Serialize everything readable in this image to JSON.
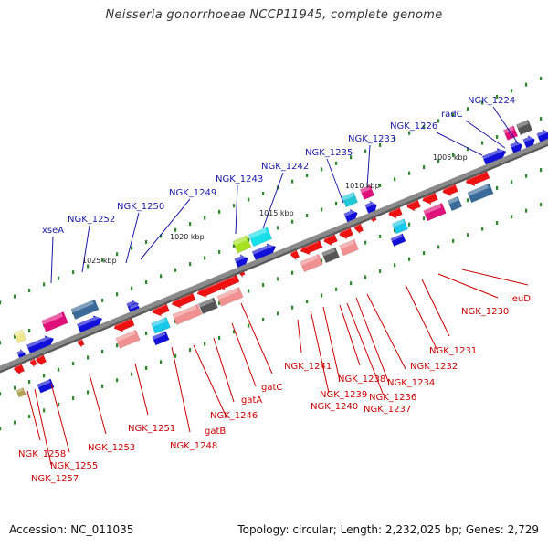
{
  "title": "Neisseria gonorrhoeae NCCP11945, complete genome",
  "footer": {
    "accession": "Accession: NC_011035",
    "summary": "Topology: circular; Length: 2,232,025 bp; Genes: 2,729"
  },
  "colors": {
    "backbone": "#8a8a8a",
    "upper_label": "#1a1aa8",
    "lower_label": "#cc0000"
  },
  "ticks": [
    "1005 kbp",
    "1010 kbp",
    "1015 kbp",
    "1020 kbp",
    "1025 kbp"
  ],
  "upper_labels": [
    "NGK_1224",
    "radC",
    "NGK_1226",
    "NGK_1233",
    "NGK_1235",
    "NGK_1242",
    "NGK_1243",
    "NGK_1249",
    "NGK_1250",
    "NGK_1252",
    "xseA"
  ],
  "lower_labels": [
    "leuD",
    "NGK_1230",
    "NGK_1231",
    "NGK_1232",
    "NGK_1234",
    "NGK_1236",
    "NGK_1237",
    "NGK_1238",
    "NGK_1239",
    "NGK_1240",
    "NGK_1241",
    "gatC",
    "gatA",
    "NGK_1246",
    "gatB",
    "NGK_1248",
    "NGK_1251",
    "NGK_1253",
    "NGK_1255",
    "NGK_1257",
    "NGK_1258"
  ]
}
